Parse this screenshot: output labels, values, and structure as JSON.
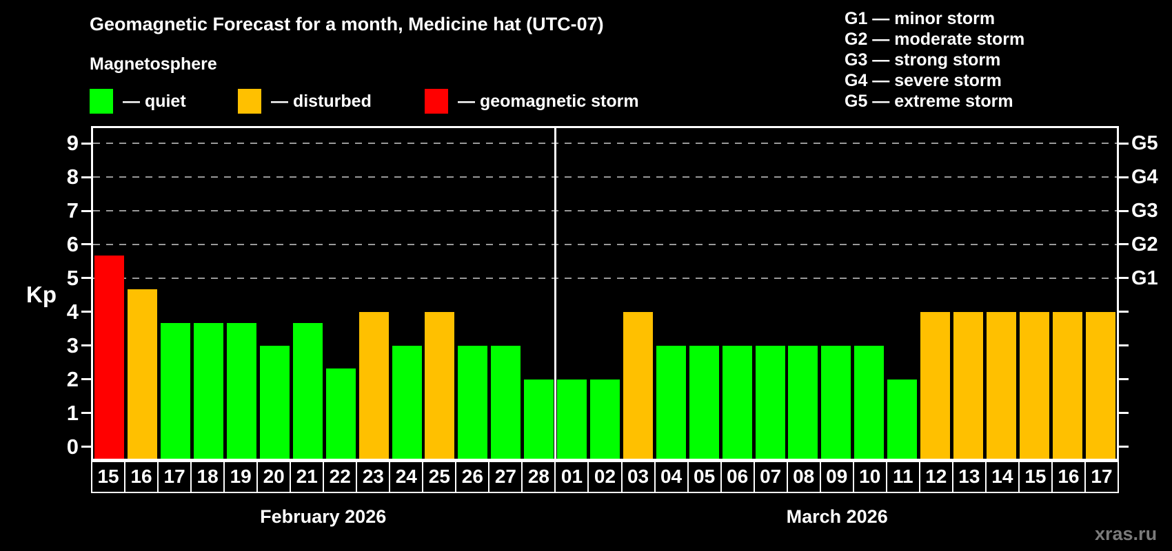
{
  "title": "Geomagnetic Forecast for a month, Medicine hat (UTC-07)",
  "subtitle": "Magnetosphere",
  "legend": {
    "quiet": "— quiet",
    "disturbed": "— disturbed",
    "storm": "— geomagnetic storm"
  },
  "g_legend": [
    "G1 — minor storm",
    "G2 — moderate storm",
    "G3 — strong storm",
    "G4 — severe storm",
    "G5 — extreme storm"
  ],
  "watermark": "xras.ru",
  "chart_data": {
    "type": "bar",
    "title": "Geomagnetic Forecast for a month, Medicine hat (UTC-07)",
    "ylabel": "Kp",
    "ylim": [
      -0.35,
      9.45
    ],
    "yticks": [
      "0",
      "1",
      "2",
      "3",
      "4",
      "5",
      "6",
      "7",
      "8",
      "9"
    ],
    "gridlines_kp": [
      5,
      6,
      7,
      8,
      9
    ],
    "grid_on": true,
    "legend_position": "top",
    "right_labels": [
      {
        "text": "G1",
        "kp": 5
      },
      {
        "text": "G2",
        "kp": 6
      },
      {
        "text": "G3",
        "kp": 7
      },
      {
        "text": "G4",
        "kp": 8
      },
      {
        "text": "G5",
        "kp": 9
      }
    ],
    "series_colors": {
      "quiet": "#00ff00",
      "disturbed": "#ffc000",
      "storm": "#ff0000"
    },
    "months": [
      {
        "label": "February 2026",
        "start": 0,
        "count": 14
      },
      {
        "label": "March 2026",
        "start": 14,
        "count": 17
      }
    ],
    "bars": [
      {
        "day": "15",
        "kp": 5.67,
        "level": "storm"
      },
      {
        "day": "16",
        "kp": 4.67,
        "level": "disturbed"
      },
      {
        "day": "17",
        "kp": 3.67,
        "level": "quiet"
      },
      {
        "day": "18",
        "kp": 3.67,
        "level": "quiet"
      },
      {
        "day": "19",
        "kp": 3.67,
        "level": "quiet"
      },
      {
        "day": "20",
        "kp": 3.0,
        "level": "quiet"
      },
      {
        "day": "21",
        "kp": 3.67,
        "level": "quiet"
      },
      {
        "day": "22",
        "kp": 2.33,
        "level": "quiet"
      },
      {
        "day": "23",
        "kp": 4.0,
        "level": "disturbed"
      },
      {
        "day": "24",
        "kp": 3.0,
        "level": "quiet"
      },
      {
        "day": "25",
        "kp": 4.0,
        "level": "disturbed"
      },
      {
        "day": "26",
        "kp": 3.0,
        "level": "quiet"
      },
      {
        "day": "27",
        "kp": 3.0,
        "level": "quiet"
      },
      {
        "day": "28",
        "kp": 2.0,
        "level": "quiet"
      },
      {
        "day": "01",
        "kp": 2.0,
        "level": "quiet"
      },
      {
        "day": "02",
        "kp": 2.0,
        "level": "quiet"
      },
      {
        "day": "03",
        "kp": 4.0,
        "level": "disturbed"
      },
      {
        "day": "04",
        "kp": 3.0,
        "level": "quiet"
      },
      {
        "day": "05",
        "kp": 3.0,
        "level": "quiet"
      },
      {
        "day": "06",
        "kp": 3.0,
        "level": "quiet"
      },
      {
        "day": "07",
        "kp": 3.0,
        "level": "quiet"
      },
      {
        "day": "08",
        "kp": 3.0,
        "level": "quiet"
      },
      {
        "day": "09",
        "kp": 3.0,
        "level": "quiet"
      },
      {
        "day": "10",
        "kp": 3.0,
        "level": "quiet"
      },
      {
        "day": "11",
        "kp": 2.0,
        "level": "quiet"
      },
      {
        "day": "12",
        "kp": 4.0,
        "level": "disturbed"
      },
      {
        "day": "13",
        "kp": 4.0,
        "level": "disturbed"
      },
      {
        "day": "14",
        "kp": 4.0,
        "level": "disturbed"
      },
      {
        "day": "15",
        "kp": 4.0,
        "level": "disturbed"
      },
      {
        "day": "16",
        "kp": 4.0,
        "level": "disturbed"
      },
      {
        "day": "17",
        "kp": 4.0,
        "level": "disturbed"
      }
    ]
  }
}
